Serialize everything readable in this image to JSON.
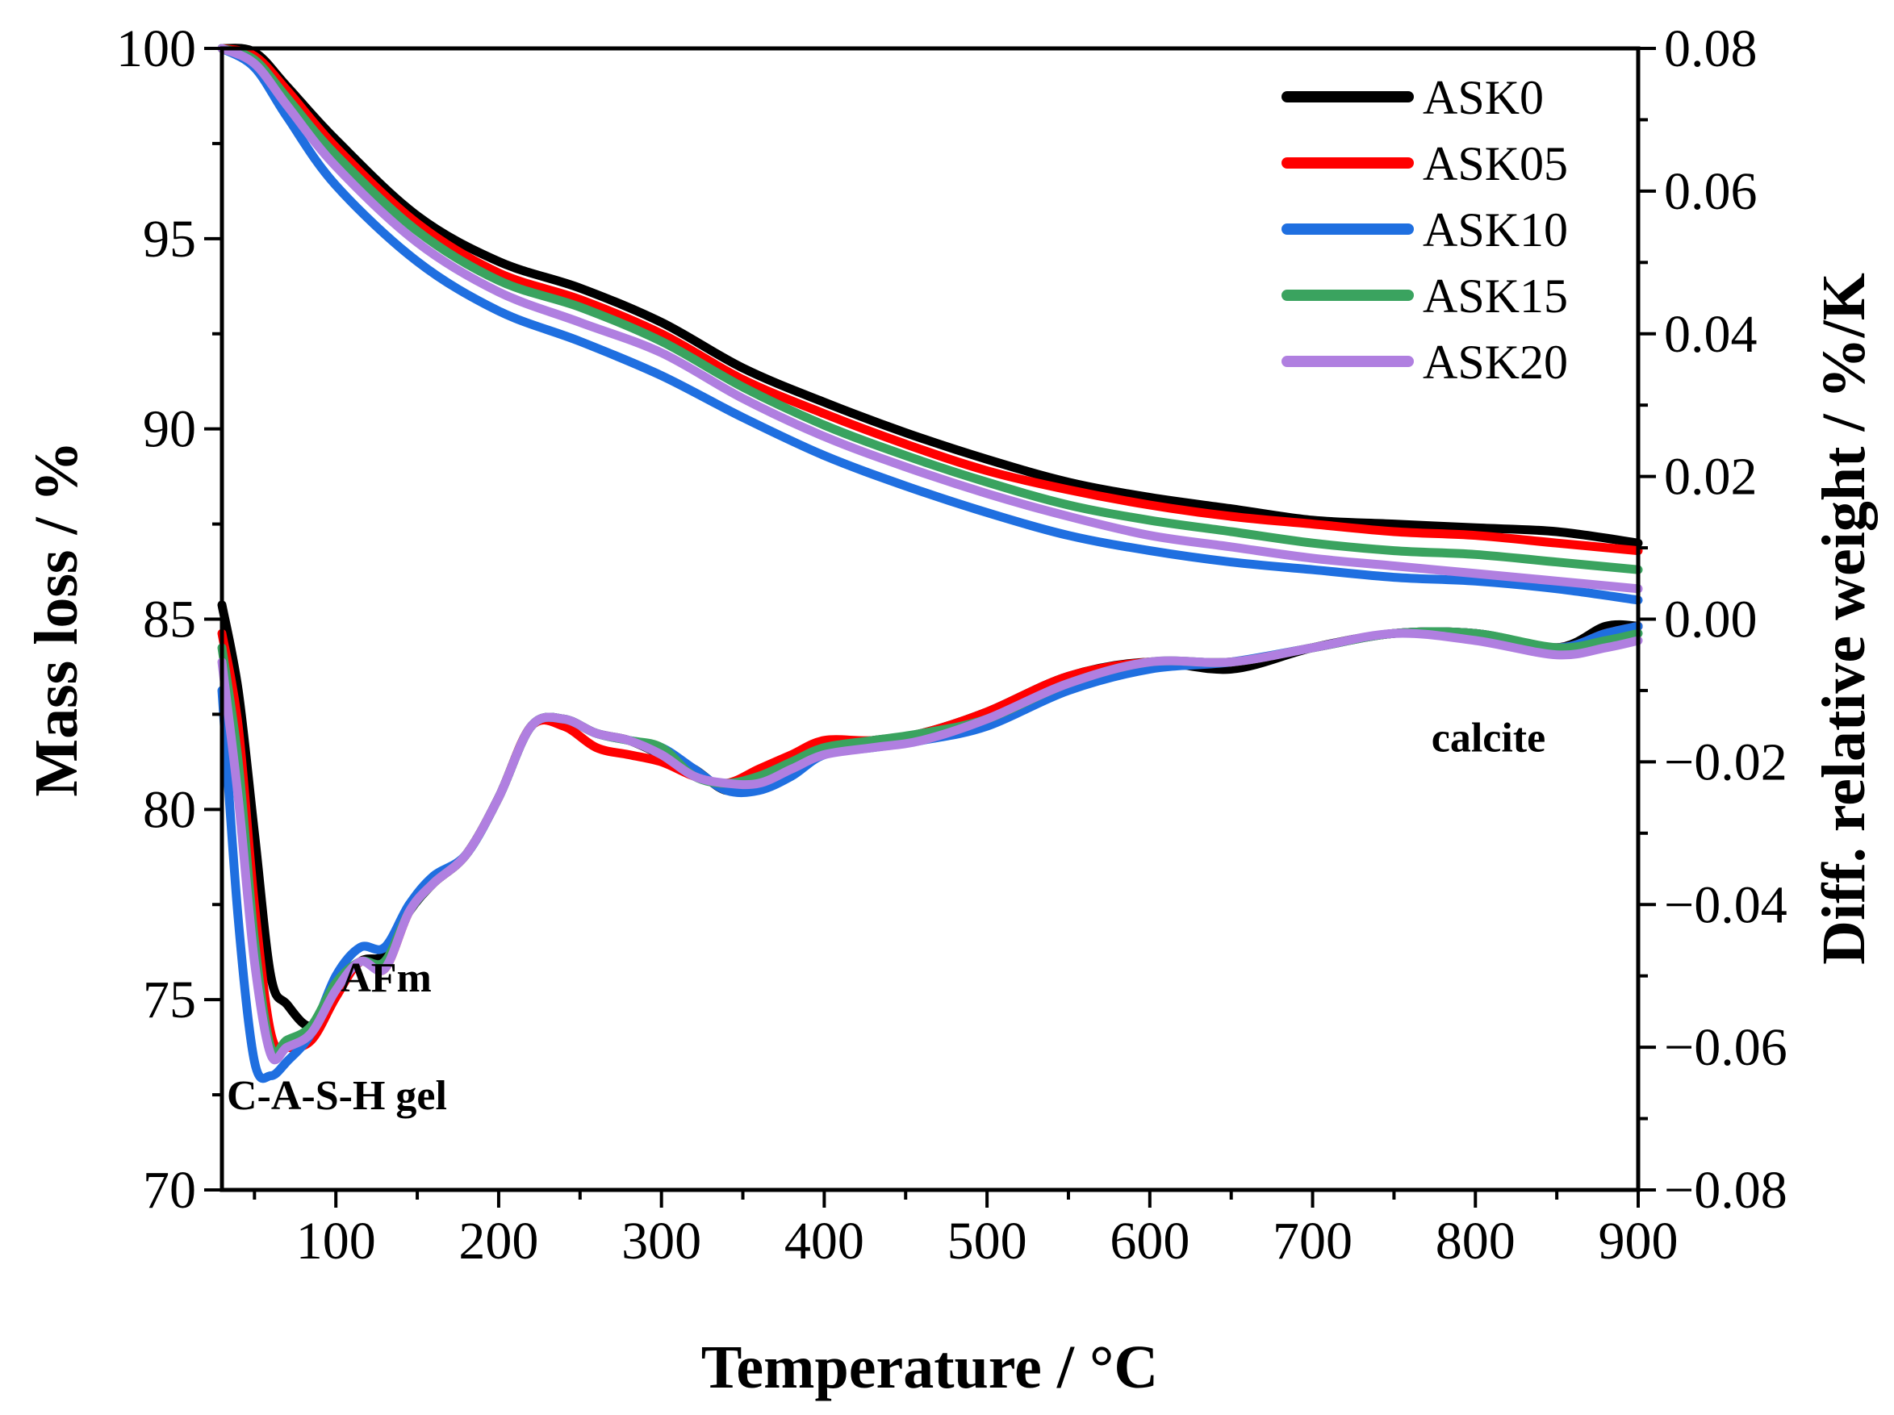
{
  "chart_data": {
    "type": "line",
    "title": "",
    "xlabel": "Temperature / °C",
    "ylabel_left": "Mass loss / %",
    "ylabel_right": "Diff. relative weight / %/K",
    "xlim": [
      30,
      900
    ],
    "ylim_left": [
      70,
      100
    ],
    "ylim_right": [
      -0.08,
      0.08
    ],
    "grid": false,
    "legend_position": "top-right",
    "x_ticks": [
      "100",
      "200",
      "300",
      "400",
      "500",
      "600",
      "700",
      "800",
      "900"
    ],
    "y_left_ticks": [
      "70",
      "75",
      "80",
      "85",
      "90",
      "95",
      "100"
    ],
    "y_right_ticks": [
      "−0.08",
      "−0.06",
      "−0.04",
      "−0.02",
      "0.00",
      "0.02",
      "0.04",
      "0.06",
      "0.08"
    ],
    "annotations": [
      {
        "text": "C-A-S-H gel",
        "x": 30,
        "y": 72.5
      },
      {
        "text": "AFm",
        "x": 100,
        "y": 75.6
      },
      {
        "text": "calcite",
        "x": 770,
        "y": 81.9
      }
    ],
    "series": [
      {
        "name": "ASK0",
        "color": "#000000",
        "tg_x": [
          30,
          50,
          70,
          100,
          150,
          200,
          250,
          300,
          350,
          400,
          450,
          500,
          550,
          600,
          650,
          700,
          750,
          800,
          850,
          900
        ],
        "tg_y": [
          100,
          99.9,
          99.0,
          97.6,
          95.6,
          94.4,
          93.7,
          92.8,
          91.6,
          90.7,
          89.9,
          89.2,
          88.6,
          88.2,
          87.9,
          87.6,
          87.5,
          87.4,
          87.3,
          87.0
        ],
        "dtg_x": [
          30,
          40,
          50,
          60,
          70,
          85,
          100,
          115,
          130,
          145,
          160,
          180,
          200,
          220,
          240,
          260,
          280,
          300,
          320,
          340,
          360,
          380,
          400,
          430,
          460,
          500,
          550,
          600,
          650,
          700,
          750,
          800,
          850,
          880,
          900
        ],
        "dtg_y": [
          0.002,
          -0.01,
          -0.03,
          -0.05,
          -0.054,
          -0.057,
          -0.052,
          -0.048,
          -0.047,
          -0.041,
          -0.037,
          -0.033,
          -0.025,
          -0.015,
          -0.014,
          -0.016,
          -0.017,
          -0.019,
          -0.021,
          -0.024,
          -0.023,
          -0.021,
          -0.018,
          -0.017,
          -0.016,
          -0.013,
          -0.008,
          -0.006,
          -0.007,
          -0.004,
          -0.002,
          -0.002,
          -0.004,
          -0.001,
          -0.001
        ]
      },
      {
        "name": "ASK05",
        "color": "#ff0000",
        "tg_x": [
          30,
          50,
          70,
          100,
          150,
          200,
          250,
          300,
          350,
          400,
          450,
          500,
          550,
          600,
          650,
          700,
          750,
          800,
          850,
          900
        ],
        "tg_y": [
          100,
          99.8,
          98.9,
          97.4,
          95.4,
          94.1,
          93.4,
          92.5,
          91.3,
          90.4,
          89.6,
          88.9,
          88.4,
          88.0,
          87.7,
          87.5,
          87.3,
          87.2,
          87.0,
          86.8
        ],
        "dtg_x": [
          30,
          40,
          50,
          60,
          70,
          85,
          100,
          115,
          130,
          145,
          160,
          180,
          200,
          220,
          240,
          260,
          280,
          300,
          320,
          340,
          360,
          380,
          400,
          430,
          460,
          500,
          550,
          600,
          650,
          700,
          750,
          800,
          850,
          880,
          900
        ],
        "dtg_y": [
          -0.002,
          -0.015,
          -0.04,
          -0.058,
          -0.06,
          -0.059,
          -0.053,
          -0.048,
          -0.049,
          -0.041,
          -0.037,
          -0.033,
          -0.025,
          -0.015,
          -0.015,
          -0.018,
          -0.019,
          -0.02,
          -0.022,
          -0.023,
          -0.021,
          -0.019,
          -0.017,
          -0.017,
          -0.016,
          -0.013,
          -0.008,
          -0.006,
          -0.006,
          -0.004,
          -0.002,
          -0.002,
          -0.004,
          -0.002,
          -0.001
        ]
      },
      {
        "name": "ASK10",
        "color": "#1f6fe0",
        "tg_x": [
          30,
          50,
          70,
          100,
          150,
          200,
          250,
          300,
          350,
          400,
          450,
          500,
          550,
          600,
          650,
          700,
          750,
          800,
          850,
          900
        ],
        "tg_y": [
          100,
          99.5,
          98.2,
          96.4,
          94.4,
          93.1,
          92.3,
          91.4,
          90.3,
          89.3,
          88.5,
          87.8,
          87.2,
          86.8,
          86.5,
          86.3,
          86.1,
          86.0,
          85.8,
          85.5
        ],
        "dtg_x": [
          30,
          40,
          50,
          60,
          70,
          85,
          100,
          115,
          130,
          145,
          160,
          180,
          200,
          220,
          240,
          260,
          280,
          300,
          320,
          340,
          360,
          380,
          400,
          430,
          460,
          500,
          550,
          600,
          650,
          700,
          750,
          800,
          850,
          880,
          900
        ],
        "dtg_y": [
          -0.01,
          -0.042,
          -0.062,
          -0.064,
          -0.062,
          -0.058,
          -0.05,
          -0.046,
          -0.046,
          -0.04,
          -0.036,
          -0.033,
          -0.025,
          -0.015,
          -0.014,
          -0.016,
          -0.017,
          -0.018,
          -0.021,
          -0.024,
          -0.024,
          -0.022,
          -0.019,
          -0.018,
          -0.017,
          -0.015,
          -0.01,
          -0.007,
          -0.006,
          -0.004,
          -0.002,
          -0.002,
          -0.004,
          -0.002,
          -0.001
        ]
      },
      {
        "name": "ASK15",
        "color": "#3aa35f",
        "tg_x": [
          30,
          50,
          70,
          100,
          150,
          200,
          250,
          300,
          350,
          400,
          450,
          500,
          550,
          600,
          650,
          700,
          750,
          800,
          850,
          900
        ],
        "tg_y": [
          100,
          99.7,
          98.7,
          97.2,
          95.2,
          93.9,
          93.2,
          92.3,
          91.1,
          90.1,
          89.3,
          88.6,
          88.0,
          87.6,
          87.3,
          87.0,
          86.8,
          86.7,
          86.5,
          86.3
        ],
        "dtg_x": [
          30,
          40,
          50,
          60,
          70,
          85,
          100,
          115,
          130,
          145,
          160,
          180,
          200,
          220,
          240,
          260,
          280,
          300,
          320,
          340,
          360,
          380,
          400,
          430,
          460,
          500,
          550,
          600,
          650,
          700,
          750,
          800,
          850,
          880,
          900
        ],
        "dtg_y": [
          -0.004,
          -0.02,
          -0.045,
          -0.06,
          -0.059,
          -0.057,
          -0.051,
          -0.048,
          -0.048,
          -0.041,
          -0.037,
          -0.033,
          -0.025,
          -0.015,
          -0.014,
          -0.016,
          -0.017,
          -0.018,
          -0.022,
          -0.023,
          -0.022,
          -0.02,
          -0.018,
          -0.017,
          -0.016,
          -0.014,
          -0.009,
          -0.006,
          -0.006,
          -0.004,
          -0.002,
          -0.002,
          -0.004,
          -0.003,
          -0.002
        ]
      },
      {
        "name": "ASK20",
        "color": "#b07fe0",
        "tg_x": [
          30,
          50,
          70,
          100,
          150,
          200,
          250,
          300,
          350,
          400,
          450,
          500,
          550,
          600,
          650,
          700,
          750,
          800,
          850,
          900
        ],
        "tg_y": [
          100,
          99.6,
          98.5,
          96.9,
          94.9,
          93.6,
          92.8,
          92.0,
          90.8,
          89.8,
          89.0,
          88.3,
          87.7,
          87.2,
          86.9,
          86.6,
          86.4,
          86.2,
          86.0,
          85.8
        ],
        "dtg_x": [
          30,
          40,
          50,
          60,
          70,
          85,
          100,
          115,
          130,
          145,
          160,
          180,
          200,
          220,
          240,
          260,
          280,
          300,
          320,
          340,
          360,
          380,
          400,
          430,
          460,
          500,
          550,
          600,
          650,
          700,
          750,
          800,
          850,
          880,
          900
        ],
        "dtg_y": [
          -0.006,
          -0.025,
          -0.048,
          -0.061,
          -0.06,
          -0.058,
          -0.052,
          -0.048,
          -0.049,
          -0.041,
          -0.037,
          -0.033,
          -0.025,
          -0.015,
          -0.014,
          -0.016,
          -0.017,
          -0.019,
          -0.022,
          -0.023,
          -0.023,
          -0.021,
          -0.019,
          -0.018,
          -0.017,
          -0.014,
          -0.009,
          -0.006,
          -0.006,
          -0.004,
          -0.002,
          -0.003,
          -0.005,
          -0.004,
          -0.003
        ]
      }
    ]
  }
}
